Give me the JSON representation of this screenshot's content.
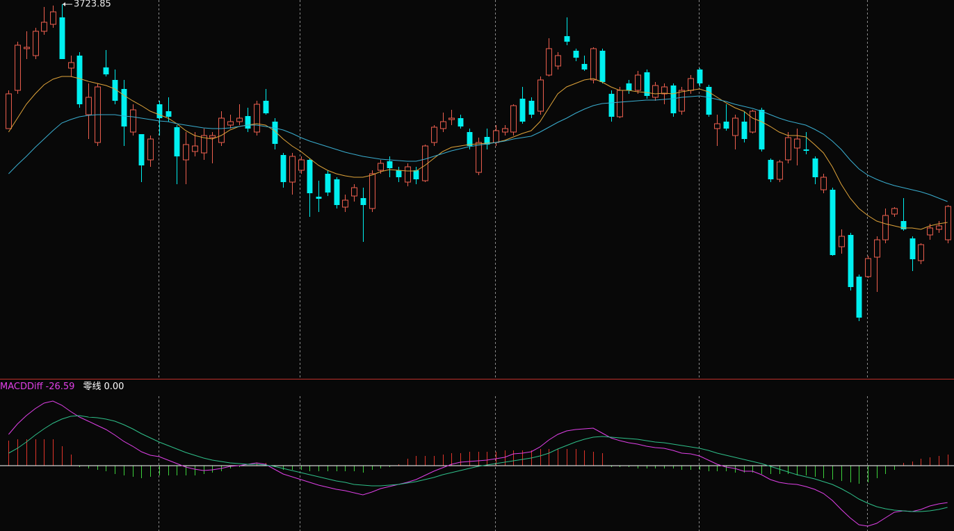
{
  "chart_data": {
    "type": "candlestick",
    "up_color": "#f0604f",
    "down_color": "#00f0f0",
    "ylim": [
      3185,
      3730
    ],
    "open": [
      3545,
      3600,
      3660,
      3650,
      3685,
      3695,
      3705,
      3632,
      3650,
      3565,
      3525,
      3633,
      3615,
      3602,
      3540,
      3537,
      3500,
      3580,
      3570,
      3547,
      3500,
      3512,
      3510,
      3532,
      3525,
      3550,
      3555,
      3563,
      3540,
      3585,
      3555,
      3507,
      3468,
      3485,
      3500,
      3447,
      3480,
      3472,
      3432,
      3448,
      3445,
      3430,
      3485,
      3498,
      3485,
      3468,
      3485,
      3470,
      3525,
      3545,
      3558,
      3560,
      3540,
      3482,
      3533,
      3525,
      3540,
      3540,
      3588,
      3585,
      3570,
      3622,
      3635,
      3678,
      3657,
      3638,
      3615,
      3657,
      3595,
      3562,
      3610,
      3600,
      3626,
      3590,
      3595,
      3607,
      3570,
      3600,
      3630,
      3605,
      3545,
      3555,
      3535,
      3555,
      3540,
      3572,
      3500,
      3472,
      3500,
      3517,
      3515,
      3502,
      3457,
      3457,
      3375,
      3392,
      3332,
      3332,
      3360,
      3385,
      3422,
      3412,
      3387,
      3355,
      3392,
      3400,
      3385
    ],
    "close": [
      3595,
      3665,
      3662,
      3685,
      3698,
      3713,
      3645,
      3640,
      3580,
      3590,
      3605,
      3623,
      3585,
      3548,
      3572,
      3492,
      3530,
      3560,
      3562,
      3505,
      3522,
      3520,
      3535,
      3535,
      3560,
      3555,
      3560,
      3545,
      3580,
      3567,
      3523,
      3468,
      3505,
      3500,
      3452,
      3444,
      3453,
      3435,
      3442,
      3460,
      3435,
      3480,
      3495,
      3488,
      3475,
      3490,
      3472,
      3520,
      3547,
      3555,
      3560,
      3548,
      3520,
      3525,
      3522,
      3542,
      3545,
      3578,
      3555,
      3565,
      3615,
      3660,
      3650,
      3670,
      3647,
      3630,
      3660,
      3612,
      3562,
      3600,
      3600,
      3622,
      3592,
      3607,
      3605,
      3567,
      3600,
      3617,
      3610,
      3565,
      3552,
      3545,
      3560,
      3530,
      3570,
      3515,
      3472,
      3497,
      3532,
      3530,
      3513,
      3475,
      3475,
      3363,
      3390,
      3317,
      3273,
      3358,
      3385,
      3420,
      3430,
      3400,
      3357,
      3378,
      3402,
      3405,
      3433
    ],
    "high": [
      3600,
      3670,
      3685,
      3690,
      3720,
      3722,
      3723.85,
      3650,
      3655,
      3610,
      3610,
      3658,
      3630,
      3615,
      3580,
      3537,
      3535,
      3585,
      3590,
      3550,
      3540,
      3540,
      3545,
      3540,
      3570,
      3565,
      3580,
      3575,
      3585,
      3602,
      3560,
      3510,
      3510,
      3505,
      3502,
      3470,
      3485,
      3475,
      3450,
      3465,
      3460,
      3485,
      3500,
      3505,
      3490,
      3495,
      3490,
      3522,
      3550,
      3568,
      3572,
      3565,
      3545,
      3532,
      3545,
      3550,
      3550,
      3580,
      3605,
      3590,
      3620,
      3675,
      3655,
      3705,
      3660,
      3650,
      3662,
      3660,
      3600,
      3605,
      3615,
      3628,
      3630,
      3612,
      3610,
      3610,
      3605,
      3622,
      3632,
      3608,
      3565,
      3580,
      3565,
      3570,
      3572,
      3575,
      3502,
      3500,
      3540,
      3545,
      3540,
      3505,
      3480,
      3460,
      3400,
      3395,
      3335,
      3362,
      3390,
      3430,
      3432,
      3445,
      3390,
      3380,
      3408,
      3412,
      3435
    ],
    "low": [
      3545,
      3595,
      3645,
      3645,
      3680,
      3690,
      3645,
      3620,
      3575,
      3530,
      3520,
      3620,
      3580,
      3520,
      3535,
      3468,
      3490,
      3535,
      3555,
      3465,
      3465,
      3505,
      3500,
      3495,
      3520,
      3545,
      3550,
      3540,
      3535,
      3565,
      3515,
      3460,
      3450,
      3480,
      3418,
      3425,
      3448,
      3430,
      3425,
      3440,
      3382,
      3425,
      3480,
      3475,
      3468,
      3462,
      3465,
      3468,
      3520,
      3540,
      3550,
      3545,
      3515,
      3478,
      3515,
      3520,
      3535,
      3535,
      3552,
      3560,
      3565,
      3620,
      3630,
      3665,
      3642,
      3628,
      3610,
      3610,
      3555,
      3560,
      3595,
      3595,
      3588,
      3585,
      3580,
      3562,
      3565,
      3595,
      3605,
      3562,
      3520,
      3542,
      3515,
      3525,
      3538,
      3512,
      3468,
      3468,
      3495,
      3492,
      3508,
      3465,
      3452,
      3362,
      3365,
      3312,
      3268,
      3330,
      3310,
      3380,
      3418,
      3398,
      3340,
      3350,
      3385,
      3395,
      3380
    ],
    "ma": [
      {
        "color": "#e0a43a",
        "values": [
          3540,
          3560,
          3580,
          3595,
          3608,
          3616,
          3620,
          3620,
          3617,
          3613,
          3610,
          3607,
          3602,
          3593,
          3585,
          3578,
          3570,
          3565,
          3560,
          3552,
          3542,
          3535,
          3532,
          3530,
          3535,
          3543,
          3548,
          3550,
          3552,
          3550,
          3542,
          3530,
          3520,
          3512,
          3502,
          3492,
          3485,
          3480,
          3477,
          3475,
          3475,
          3478,
          3483,
          3486,
          3485,
          3484,
          3484,
          3492,
          3502,
          3512,
          3518,
          3520,
          3522,
          3523,
          3524,
          3525,
          3528,
          3533,
          3538,
          3542,
          3555,
          3575,
          3595,
          3605,
          3610,
          3615,
          3617,
          3612,
          3605,
          3600,
          3600,
          3598,
          3597,
          3595,
          3596,
          3595,
          3598,
          3600,
          3602,
          3598,
          3590,
          3582,
          3575,
          3570,
          3560,
          3555,
          3548,
          3540,
          3535,
          3535,
          3533,
          3522,
          3510,
          3490,
          3465,
          3445,
          3430,
          3420,
          3412,
          3408,
          3405,
          3402,
          3402,
          3400,
          3405,
          3408,
          3410
        ]
      },
      {
        "color": "#3aaed0",
        "values": [
          3480,
          3493,
          3505,
          3518,
          3530,
          3542,
          3553,
          3558,
          3562,
          3564,
          3565,
          3565,
          3565,
          3563,
          3562,
          3560,
          3558,
          3556,
          3555,
          3552,
          3550,
          3548,
          3546,
          3545,
          3545,
          3546,
          3548,
          3550,
          3550,
          3548,
          3546,
          3543,
          3538,
          3532,
          3527,
          3523,
          3519,
          3515,
          3511,
          3508,
          3505,
          3503,
          3501,
          3500,
          3499,
          3498,
          3498,
          3501,
          3505,
          3509,
          3513,
          3516,
          3519,
          3521,
          3523,
          3525,
          3527,
          3530,
          3532,
          3534,
          3540,
          3547,
          3554,
          3560,
          3567,
          3573,
          3578,
          3581,
          3582,
          3583,
          3584,
          3585,
          3586,
          3586,
          3587,
          3588,
          3590,
          3591,
          3592,
          3590,
          3587,
          3584,
          3580,
          3577,
          3574,
          3570,
          3565,
          3560,
          3556,
          3553,
          3550,
          3544,
          3537,
          3527,
          3515,
          3500,
          3487,
          3478,
          3472,
          3467,
          3463,
          3460,
          3457,
          3454,
          3450,
          3445,
          3440
        ]
      }
    ],
    "macd": {
      "ylim": [
        -47,
        61
      ],
      "legend": [
        {
          "name": "MACDDiff",
          "value": -26.59,
          "color": "#e040e8"
        },
        {
          "name": "零线",
          "value": 0,
          "value_label": "0.00",
          "color": "#ffffff"
        }
      ],
      "diff": {
        "color": "#e040e8",
        "values": [
          22.5,
          30,
          36,
          41,
          45,
          46.5,
          43.5,
          39,
          35,
          32,
          29,
          26,
          22,
          17.5,
          14,
          10,
          7.5,
          6.5,
          4,
          1.5,
          -1,
          -2.5,
          -3.5,
          -3,
          -2,
          -0.5,
          0,
          1,
          2,
          1,
          -2.5,
          -6,
          -8,
          -10,
          -12,
          -14,
          -15.5,
          -17,
          -18,
          -19.5,
          -21,
          -19,
          -16.5,
          -15,
          -13.5,
          -12,
          -10,
          -7,
          -4,
          -1.5,
          1,
          2.5,
          3,
          3.5,
          4,
          5,
          6,
          8.5,
          9,
          10,
          13.5,
          18.5,
          22.5,
          25,
          26,
          26.5,
          27,
          23.5,
          20,
          18,
          16.5,
          15.5,
          14,
          13,
          12.5,
          11,
          9,
          8.5,
          7,
          4,
          1,
          -1,
          -2,
          -4,
          -4,
          -6.5,
          -10,
          -12,
          -13,
          -13.5,
          -15,
          -17,
          -20,
          -25,
          -31.5,
          -37.5,
          -42.5,
          -43.5,
          -41.5,
          -37.5,
          -33.5,
          -32.5,
          -33,
          -31.5,
          -29,
          -27.5,
          -26.59
        ]
      },
      "dea": {
        "color": "#2fc08a",
        "values": [
          9,
          12.5,
          17,
          22,
          26.5,
          30.5,
          33.5,
          35.5,
          36,
          35,
          34.5,
          33.5,
          32,
          29.5,
          26.5,
          23,
          20,
          17,
          14.5,
          12,
          9.5,
          7.5,
          5.5,
          4,
          3,
          2,
          1.5,
          1,
          1,
          0.5,
          -0.5,
          -2,
          -3.5,
          -5,
          -6.5,
          -8,
          -9.5,
          -11,
          -12,
          -13.5,
          -14,
          -14.5,
          -14.5,
          -14,
          -13.5,
          -12.5,
          -11.5,
          -10,
          -8.5,
          -6.5,
          -5,
          -3.5,
          -2,
          -0.5,
          0.5,
          1.5,
          2.5,
          3.5,
          4.5,
          5.5,
          7,
          9,
          12,
          14.5,
          17,
          19,
          20.5,
          21,
          20.5,
          20,
          19.5,
          19,
          18,
          17,
          16.5,
          15.5,
          14.5,
          13.5,
          12.5,
          11,
          9,
          7.5,
          6,
          4.5,
          3,
          1.5,
          -0.5,
          -2.5,
          -4.5,
          -6.5,
          -8,
          -9.5,
          -11.5,
          -13.5,
          -16.5,
          -20,
          -24,
          -27,
          -29.5,
          -31,
          -32,
          -32.5,
          -33,
          -33,
          -32.5,
          -31.5,
          -30
        ]
      },
      "hist": {
        "up_color": "#e0342a",
        "down_color": "#3cd23c",
        "values": [
          18,
          19,
          19,
          19,
          19,
          19,
          14,
          8,
          -1,
          -2,
          -3,
          -4,
          -6,
          -7,
          -8,
          -9,
          -8,
          -7,
          -7,
          -7,
          -7,
          -7,
          -6,
          -5,
          -4,
          -2,
          -1,
          0,
          2,
          2,
          -1,
          -3,
          -3,
          -3,
          -4,
          -4,
          -4,
          -4,
          -4,
          -4,
          -5,
          -3,
          -2,
          -1,
          1,
          5,
          7,
          7,
          7,
          8,
          9,
          9,
          10,
          10,
          10,
          10,
          11,
          11,
          11,
          11,
          12,
          12,
          12,
          12,
          12,
          11,
          10,
          9,
          -1,
          -1,
          -1,
          -2,
          -2,
          -2,
          -2,
          -2,
          -3,
          -3,
          -3,
          -4,
          -4,
          -4,
          -5,
          -5,
          -5,
          -6,
          -6,
          -6,
          -6,
          -7,
          -7,
          -8,
          -9,
          -10,
          -11,
          -12,
          -13,
          -12,
          -9,
          -6,
          -3,
          2,
          3,
          5,
          6,
          7,
          8
        ]
      }
    }
  }
}
